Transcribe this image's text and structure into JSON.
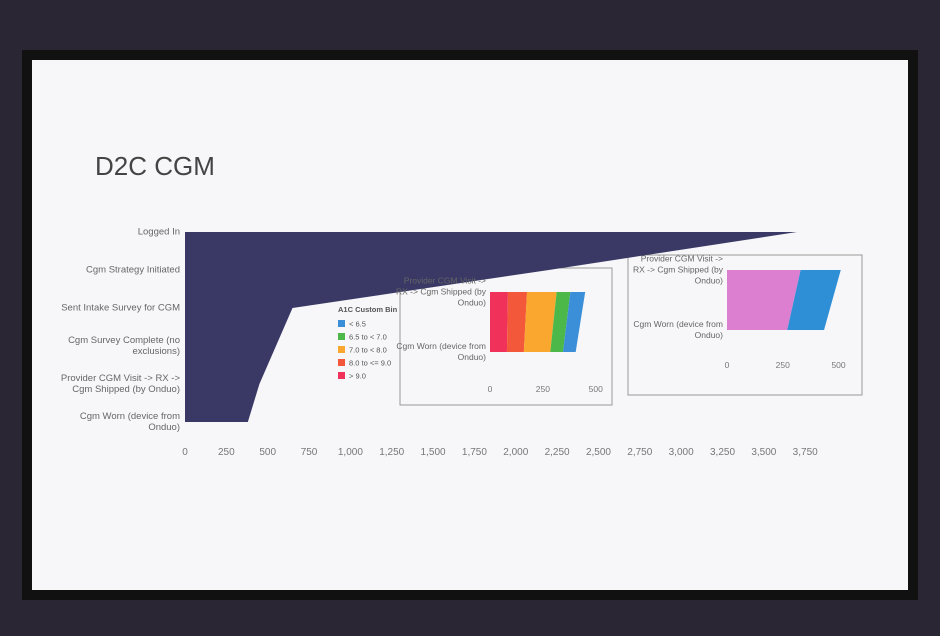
{
  "chart_data": [
    {
      "type": "area",
      "title": "D2C CGM",
      "categories": [
        "Logged In",
        "Cgm Strategy Initiated",
        "Sent Intake Survey for CGM",
        "Cgm Survey Complete (no exclusions)",
        "Provider CGM Visit -> RX -> Cgm Shipped (by Onduo)",
        "Cgm Worn (device from Onduo)"
      ],
      "values": [
        3700,
        2200,
        650,
        550,
        450,
        380
      ],
      "color": "#3a3966",
      "xlim": [
        0,
        3900
      ],
      "xticks": [
        0,
        250,
        500,
        750,
        {
          "value": 1000,
          "label": "1,000"
        },
        {
          "value": 1250,
          "label": "1,250"
        },
        {
          "value": 1500,
          "label": "1,500"
        },
        {
          "value": 1750,
          "label": "1,750"
        },
        {
          "value": 2000,
          "label": "2,000"
        },
        {
          "value": 2250,
          "label": "2,250"
        },
        {
          "value": 2500,
          "label": "2,500"
        },
        {
          "value": 2750,
          "label": "2,750"
        },
        {
          "value": 3000,
          "label": "3,000"
        },
        {
          "value": 3250,
          "label": "3,250"
        },
        {
          "value": 3500,
          "label": "3,500"
        },
        {
          "value": 3750,
          "label": "3,750"
        }
      ]
    },
    {
      "type": "stacked-area",
      "categories": [
        "Provider CGM Visit -> RX -> Cgm Shipped (by Onduo)",
        "Cgm Worn (device from Onduo)"
      ],
      "legend": {
        "title": "A1C Custom Bin",
        "position": "left"
      },
      "series": [
        {
          "name": "< 6.5",
          "color": "#3a8fd8",
          "values": [
            70,
            60
          ]
        },
        {
          "name": "6.5 to < 7.0",
          "color": "#4db84a",
          "values": [
            65,
            60
          ]
        },
        {
          "name": "7.0 to < 8.0",
          "color": "#f9a72e",
          "values": [
            140,
            125
          ]
        },
        {
          "name": "8.0 to <= 9.0",
          "color": "#f4583a",
          "values": [
            90,
            80
          ]
        },
        {
          "name": "> 9.0",
          "color": "#f0325a",
          "values": [
            85,
            80
          ]
        }
      ],
      "xlim": [
        0,
        520
      ],
      "xticks": [
        0,
        250,
        500
      ]
    },
    {
      "type": "stacked-area",
      "categories": [
        "Provider CGM Visit -> RX -> Cgm Shipped (by Onduo)",
        "Cgm Worn (device from Onduo)"
      ],
      "series": [
        {
          "color": "#2f8fd6",
          "values": [
            180,
            165
          ]
        },
        {
          "color": "#dc7fd1",
          "values": [
            330,
            270
          ]
        }
      ],
      "xlim": [
        0,
        520
      ],
      "xticks": [
        0,
        250,
        500
      ]
    }
  ]
}
